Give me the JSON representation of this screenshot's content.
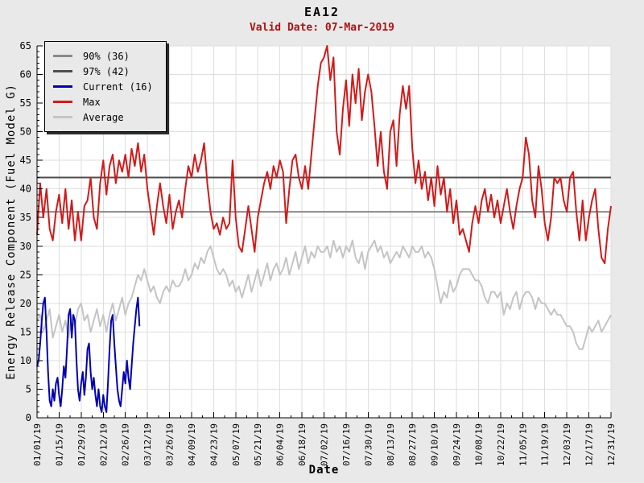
{
  "header": {
    "title": "EA12",
    "subtitle": "Valid Date: 07-Mar-2019"
  },
  "chart_data": {
    "type": "line",
    "title": "EA12",
    "subtitle": "Valid Date: 07-Mar-2019",
    "xlabel": "Date",
    "ylabel": "Energy Release Component (Fuel Model G)",
    "ylim": [
      0,
      65
    ],
    "y_tick_step": 5,
    "x_range_days": [
      0,
      364
    ],
    "x_tick_step_days": 14,
    "x_minor_tick_days": 7,
    "grid": true,
    "legend_position": "top-left",
    "x_tick_labels": [
      "01/01/19",
      "01/15/19",
      "01/29/19",
      "02/12/19",
      "02/26/19",
      "03/12/19",
      "03/26/19",
      "04/09/19",
      "04/23/19",
      "05/07/19",
      "05/21/19",
      "06/04/19",
      "06/18/19",
      "07/02/19",
      "07/16/19",
      "07/30/19",
      "08/13/19",
      "08/27/19",
      "09/10/19",
      "09/24/19",
      "10/08/19",
      "10/22/19",
      "11/05/19",
      "11/19/19",
      "12/03/19",
      "12/17/19",
      "12/31/19"
    ],
    "colors": {
      "background": "#e9e9e9",
      "plot_background": "#ffffff",
      "grid": "#dedede",
      "axis": "#000000",
      "subtitle": "#b01212"
    },
    "thresholds": [
      {
        "name": "90% (36)",
        "value": 36,
        "color": "#8a8a8a"
      },
      {
        "name": "97% (42)",
        "value": 42,
        "color": "#4d4d4d"
      }
    ],
    "series": [
      {
        "name": "Current (16)",
        "color": "#0000b4",
        "start_day": 0,
        "step_days": 1,
        "values": [
          9,
          10,
          13,
          17,
          20,
          21,
          15,
          8,
          3,
          2,
          5,
          3,
          6,
          7,
          4,
          2,
          5,
          9,
          7,
          12,
          18,
          19,
          14,
          18,
          17,
          10,
          5,
          3,
          6,
          8,
          4,
          7,
          12,
          13,
          8,
          5,
          7,
          4,
          2,
          5,
          2,
          1,
          4,
          2,
          1,
          6,
          12,
          17,
          18,
          13,
          9,
          5,
          3,
          2,
          5,
          8,
          6,
          10,
          7,
          5,
          9,
          13,
          16,
          19,
          21,
          16
        ]
      },
      {
        "name": "Max",
        "color": "#d21a1a",
        "start_day": 0,
        "step_days": 2,
        "values": [
          32,
          41,
          35,
          40,
          33,
          31,
          36,
          39,
          34,
          40,
          33,
          38,
          31,
          36,
          31,
          37,
          38,
          42,
          35,
          33,
          41,
          45,
          39,
          44,
          46,
          41,
          45,
          43,
          46,
          42,
          47,
          44,
          48,
          43,
          46,
          40,
          36,
          32,
          37,
          41,
          37,
          34,
          39,
          33,
          36,
          38,
          35,
          40,
          44,
          42,
          46,
          43,
          45,
          48,
          41,
          36,
          33,
          34,
          32,
          35,
          33,
          34,
          45,
          35,
          30,
          29,
          33,
          37,
          33,
          29,
          35,
          38,
          41,
          43,
          40,
          44,
          42,
          45,
          43,
          34,
          40,
          45,
          46,
          42,
          40,
          44,
          40,
          46,
          52,
          58,
          62,
          63,
          65,
          59,
          63,
          50,
          46,
          54,
          59,
          51,
          60,
          55,
          61,
          52,
          57,
          60,
          57,
          51,
          44,
          50,
          43,
          40,
          50,
          52,
          44,
          53,
          58,
          54,
          58,
          47,
          41,
          45,
          40,
          43,
          38,
          42,
          37,
          44,
          39,
          42,
          36,
          40,
          34,
          38,
          32,
          33,
          31,
          29,
          34,
          37,
          34,
          38,
          40,
          36,
          39,
          35,
          38,
          34,
          37,
          40,
          36,
          33,
          37,
          40,
          42,
          49,
          46,
          38,
          35,
          44,
          40,
          34,
          31,
          35,
          42,
          41,
          42,
          38,
          36,
          42,
          43,
          36,
          31,
          38,
          31,
          35,
          38,
          40,
          33,
          28,
          27,
          33,
          37
        ]
      },
      {
        "name": "Average",
        "color": "#c4c4c4",
        "start_day": 0,
        "step_days": 2,
        "values": [
          17,
          18,
          15,
          17,
          19,
          14,
          16,
          18,
          15,
          17,
          14,
          18,
          16,
          19,
          20,
          17,
          18,
          15,
          17,
          19,
          16,
          18,
          15,
          18,
          20,
          17,
          19,
          21,
          18,
          20,
          21,
          23,
          25,
          24,
          26,
          24,
          22,
          23,
          21,
          20,
          22,
          23,
          22,
          24,
          23,
          23,
          24,
          26,
          24,
          25,
          27,
          26,
          28,
          27,
          29,
          30,
          28,
          26,
          25,
          26,
          25,
          23,
          24,
          22,
          23,
          21,
          23,
          25,
          22,
          24,
          26,
          23,
          25,
          27,
          24,
          26,
          27,
          25,
          26,
          28,
          25,
          27,
          29,
          26,
          28,
          30,
          27,
          29,
          28,
          30,
          29,
          29,
          30,
          28,
          31,
          29,
          30,
          28,
          30,
          29,
          31,
          28,
          27,
          29,
          26,
          29,
          30,
          31,
          29,
          30,
          28,
          29,
          27,
          28,
          29,
          28,
          30,
          29,
          28,
          30,
          29,
          29,
          30,
          28,
          29,
          28,
          26,
          23,
          20,
          22,
          21,
          24,
          22,
          23,
          25,
          26,
          26,
          26,
          25,
          24,
          24,
          23,
          21,
          20,
          22,
          22,
          21,
          22,
          18,
          20,
          19,
          21,
          22,
          19,
          21,
          22,
          22,
          21,
          19,
          21,
          20,
          20,
          19,
          18,
          19,
          18,
          18,
          17,
          16,
          16,
          15,
          13,
          12,
          12,
          14,
          16,
          15,
          16,
          17,
          15,
          16,
          17,
          18
        ]
      }
    ]
  }
}
